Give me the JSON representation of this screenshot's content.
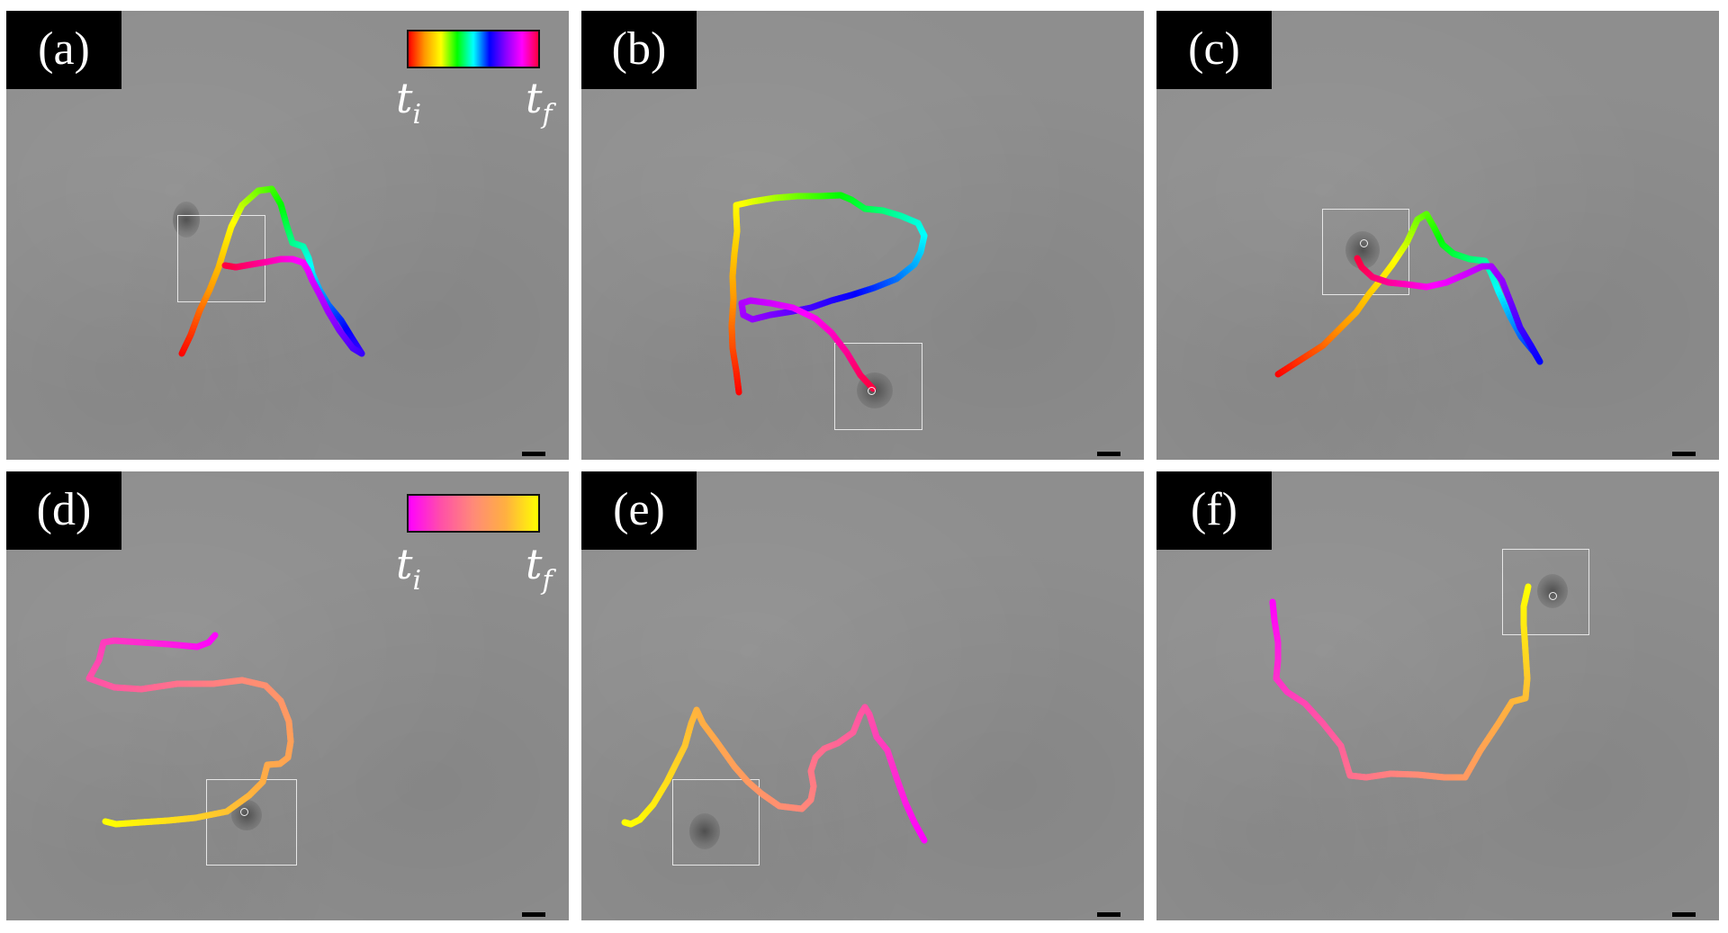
{
  "figure": {
    "description": "Six microscopy panels showing particle trajectories tracing letters/shapes, color-coded by time",
    "panels": [
      {
        "id": "a",
        "label": "(a)",
        "shape": "A",
        "colormap": "rainbow",
        "colorbar_visible": true,
        "roi_box": [
          190,
          227,
          98,
          97
        ],
        "blob": [
          185,
          212,
          30,
          40
        ],
        "marker": null
      },
      {
        "id": "b",
        "label": "(b)",
        "shape": "R",
        "colormap": "rainbow",
        "colorbar_visible": false,
        "roi_box": [
          281,
          369,
          98,
          97
        ],
        "blob": [
          306,
          402,
          40,
          40
        ],
        "marker": [
          318,
          418
        ]
      },
      {
        "id": "c",
        "label": "(c)",
        "shape": "A",
        "colormap": "rainbow",
        "colorbar_visible": false,
        "roi_box": [
          184,
          220,
          97,
          96
        ],
        "blob": [
          210,
          245,
          38,
          42
        ],
        "marker": [
          226,
          254
        ]
      },
      {
        "id": "d",
        "label": "(d)",
        "shape": "5",
        "colormap": "spring",
        "colorbar_visible": true,
        "roi_box": [
          222,
          342,
          101,
          96
        ],
        "blob": [
          250,
          365,
          34,
          34
        ],
        "marker": [
          260,
          374
        ]
      },
      {
        "id": "e",
        "label": "(e)",
        "shape": "M",
        "colormap": "spring",
        "colorbar_visible": false,
        "roi_box": [
          101,
          342,
          97,
          96
        ],
        "blob": [
          120,
          380,
          34,
          40
        ],
        "marker": null
      },
      {
        "id": "f",
        "label": "(f)",
        "shape": "U",
        "colormap": "spring",
        "colorbar_visible": false,
        "roi_box": [
          384,
          86,
          97,
          96
        ],
        "blob": [
          423,
          114,
          34,
          38
        ],
        "marker": [
          436,
          134
        ]
      }
    ],
    "colorbars": {
      "rainbow": {
        "start_label": "t",
        "start_sub": "i",
        "end_label": "t",
        "end_sub": "f",
        "stops": [
          "#ff0000",
          "#ff9a00",
          "#ffff00",
          "#00ff00",
          "#00ffff",
          "#0000ff",
          "#8a00ff",
          "#ff00ff",
          "#ff0040"
        ]
      },
      "spring": {
        "start_label": "t",
        "start_sub": "i",
        "end_label": "t",
        "end_sub": "f",
        "stops": [
          "#ff00ff",
          "#ff50a8",
          "#ff8a78",
          "#ffb040",
          "#ffff00"
        ]
      }
    },
    "trajectories": {
      "a": [
        [
          195,
          381
        ],
        [
          205,
          360
        ],
        [
          215,
          333
        ],
        [
          226,
          310
        ],
        [
          236,
          285
        ],
        [
          243,
          262
        ],
        [
          250,
          240
        ],
        [
          262,
          216
        ],
        [
          280,
          200
        ],
        [
          295,
          198
        ],
        [
          305,
          215
        ],
        [
          312,
          240
        ],
        [
          318,
          258
        ],
        [
          330,
          262
        ],
        [
          336,
          275
        ],
        [
          340,
          292
        ],
        [
          348,
          310
        ],
        [
          358,
          327
        ],
        [
          372,
          344
        ],
        [
          383,
          362
        ],
        [
          395,
          381
        ],
        [
          385,
          375
        ],
        [
          370,
          355
        ],
        [
          358,
          335
        ],
        [
          348,
          315
        ],
        [
          340,
          300
        ],
        [
          335,
          288
        ],
        [
          330,
          280
        ],
        [
          318,
          276
        ],
        [
          305,
          276
        ],
        [
          290,
          279
        ],
        [
          272,
          282
        ],
        [
          255,
          285
        ],
        [
          243,
          283
        ]
      ],
      "b": [
        [
          175,
          424
        ],
        [
          172,
          400
        ],
        [
          168,
          375
        ],
        [
          167,
          350
        ],
        [
          169,
          320
        ],
        [
          168,
          295
        ],
        [
          170,
          270
        ],
        [
          173,
          245
        ],
        [
          172,
          225
        ],
        [
          172,
          216
        ],
        [
          190,
          212
        ],
        [
          215,
          208
        ],
        [
          240,
          206
        ],
        [
          265,
          206
        ],
        [
          288,
          205
        ],
        [
          300,
          210
        ],
        [
          315,
          220
        ],
        [
          335,
          222
        ],
        [
          355,
          228
        ],
        [
          374,
          236
        ],
        [
          381,
          250
        ],
        [
          377,
          268
        ],
        [
          370,
          282
        ],
        [
          350,
          298
        ],
        [
          325,
          308
        ],
        [
          300,
          316
        ],
        [
          278,
          322
        ],
        [
          255,
          330
        ],
        [
          235,
          334
        ],
        [
          210,
          338
        ],
        [
          190,
          343
        ],
        [
          180,
          338
        ],
        [
          178,
          325
        ],
        [
          188,
          322
        ],
        [
          210,
          325
        ],
        [
          235,
          330
        ],
        [
          260,
          342
        ],
        [
          278,
          358
        ],
        [
          295,
          380
        ],
        [
          310,
          405
        ],
        [
          324,
          420
        ]
      ],
      "c": [
        [
          135,
          404
        ],
        [
          160,
          388
        ],
        [
          185,
          372
        ],
        [
          205,
          352
        ],
        [
          222,
          335
        ],
        [
          236,
          315
        ],
        [
          250,
          298
        ],
        [
          262,
          282
        ],
        [
          278,
          258
        ],
        [
          290,
          232
        ],
        [
          300,
          226
        ],
        [
          308,
          240
        ],
        [
          318,
          260
        ],
        [
          330,
          270
        ],
        [
          348,
          276
        ],
        [
          365,
          278
        ],
        [
          372,
          292
        ],
        [
          380,
          312
        ],
        [
          393,
          340
        ],
        [
          405,
          362
        ],
        [
          420,
          380
        ],
        [
          426,
          390
        ],
        [
          416,
          372
        ],
        [
          404,
          352
        ],
        [
          395,
          328
        ],
        [
          384,
          300
        ],
        [
          372,
          284
        ],
        [
          362,
          284
        ],
        [
          345,
          292
        ],
        [
          322,
          302
        ],
        [
          300,
          307
        ],
        [
          278,
          304
        ],
        [
          258,
          302
        ],
        [
          240,
          296
        ],
        [
          228,
          285
        ],
        [
          223,
          275
        ]
      ],
      "d": [
        [
          232,
          182
        ],
        [
          225,
          190
        ],
        [
          212,
          195
        ],
        [
          180,
          192
        ],
        [
          150,
          190
        ],
        [
          120,
          188
        ],
        [
          108,
          190
        ],
        [
          103,
          210
        ],
        [
          92,
          230
        ],
        [
          120,
          240
        ],
        [
          150,
          242
        ],
        [
          190,
          236
        ],
        [
          230,
          236
        ],
        [
          262,
          232
        ],
        [
          288,
          238
        ],
        [
          305,
          255
        ],
        [
          314,
          278
        ],
        [
          316,
          300
        ],
        [
          313,
          318
        ],
        [
          304,
          325
        ],
        [
          290,
          326
        ],
        [
          285,
          345
        ],
        [
          270,
          360
        ],
        [
          245,
          378
        ],
        [
          210,
          385
        ],
        [
          180,
          388
        ],
        [
          150,
          390
        ],
        [
          122,
          392
        ],
        [
          110,
          389
        ]
      ],
      "e": [
        [
          381,
          410
        ],
        [
          370,
          390
        ],
        [
          360,
          368
        ],
        [
          350,
          340
        ],
        [
          340,
          310
        ],
        [
          328,
          295
        ],
        [
          320,
          270
        ],
        [
          315,
          262
        ],
        [
          310,
          270
        ],
        [
          302,
          290
        ],
        [
          285,
          302
        ],
        [
          270,
          308
        ],
        [
          260,
          318
        ],
        [
          255,
          333
        ],
        [
          258,
          350
        ],
        [
          255,
          365
        ],
        [
          245,
          375
        ],
        [
          220,
          372
        ],
        [
          200,
          358
        ],
        [
          185,
          345
        ],
        [
          170,
          328
        ],
        [
          150,
          300
        ],
        [
          135,
          280
        ],
        [
          128,
          265
        ],
        [
          122,
          280
        ],
        [
          115,
          305
        ],
        [
          105,
          325
        ],
        [
          95,
          345
        ],
        [
          80,
          370
        ],
        [
          65,
          387
        ],
        [
          55,
          392
        ],
        [
          48,
          390
        ]
      ],
      "f": [
        [
          129,
          145
        ],
        [
          131,
          165
        ],
        [
          135,
          190
        ],
        [
          135,
          210
        ],
        [
          133,
          230
        ],
        [
          145,
          245
        ],
        [
          165,
          258
        ],
        [
          185,
          280
        ],
        [
          205,
          305
        ],
        [
          215,
          338
        ],
        [
          233,
          340
        ],
        [
          260,
          336
        ],
        [
          290,
          337
        ],
        [
          320,
          340
        ],
        [
          343,
          340
        ],
        [
          360,
          310
        ],
        [
          380,
          280
        ],
        [
          395,
          256
        ],
        [
          410,
          252
        ],
        [
          412,
          230
        ],
        [
          410,
          200
        ],
        [
          408,
          170
        ],
        [
          408,
          150
        ],
        [
          413,
          128
        ]
      ]
    }
  }
}
